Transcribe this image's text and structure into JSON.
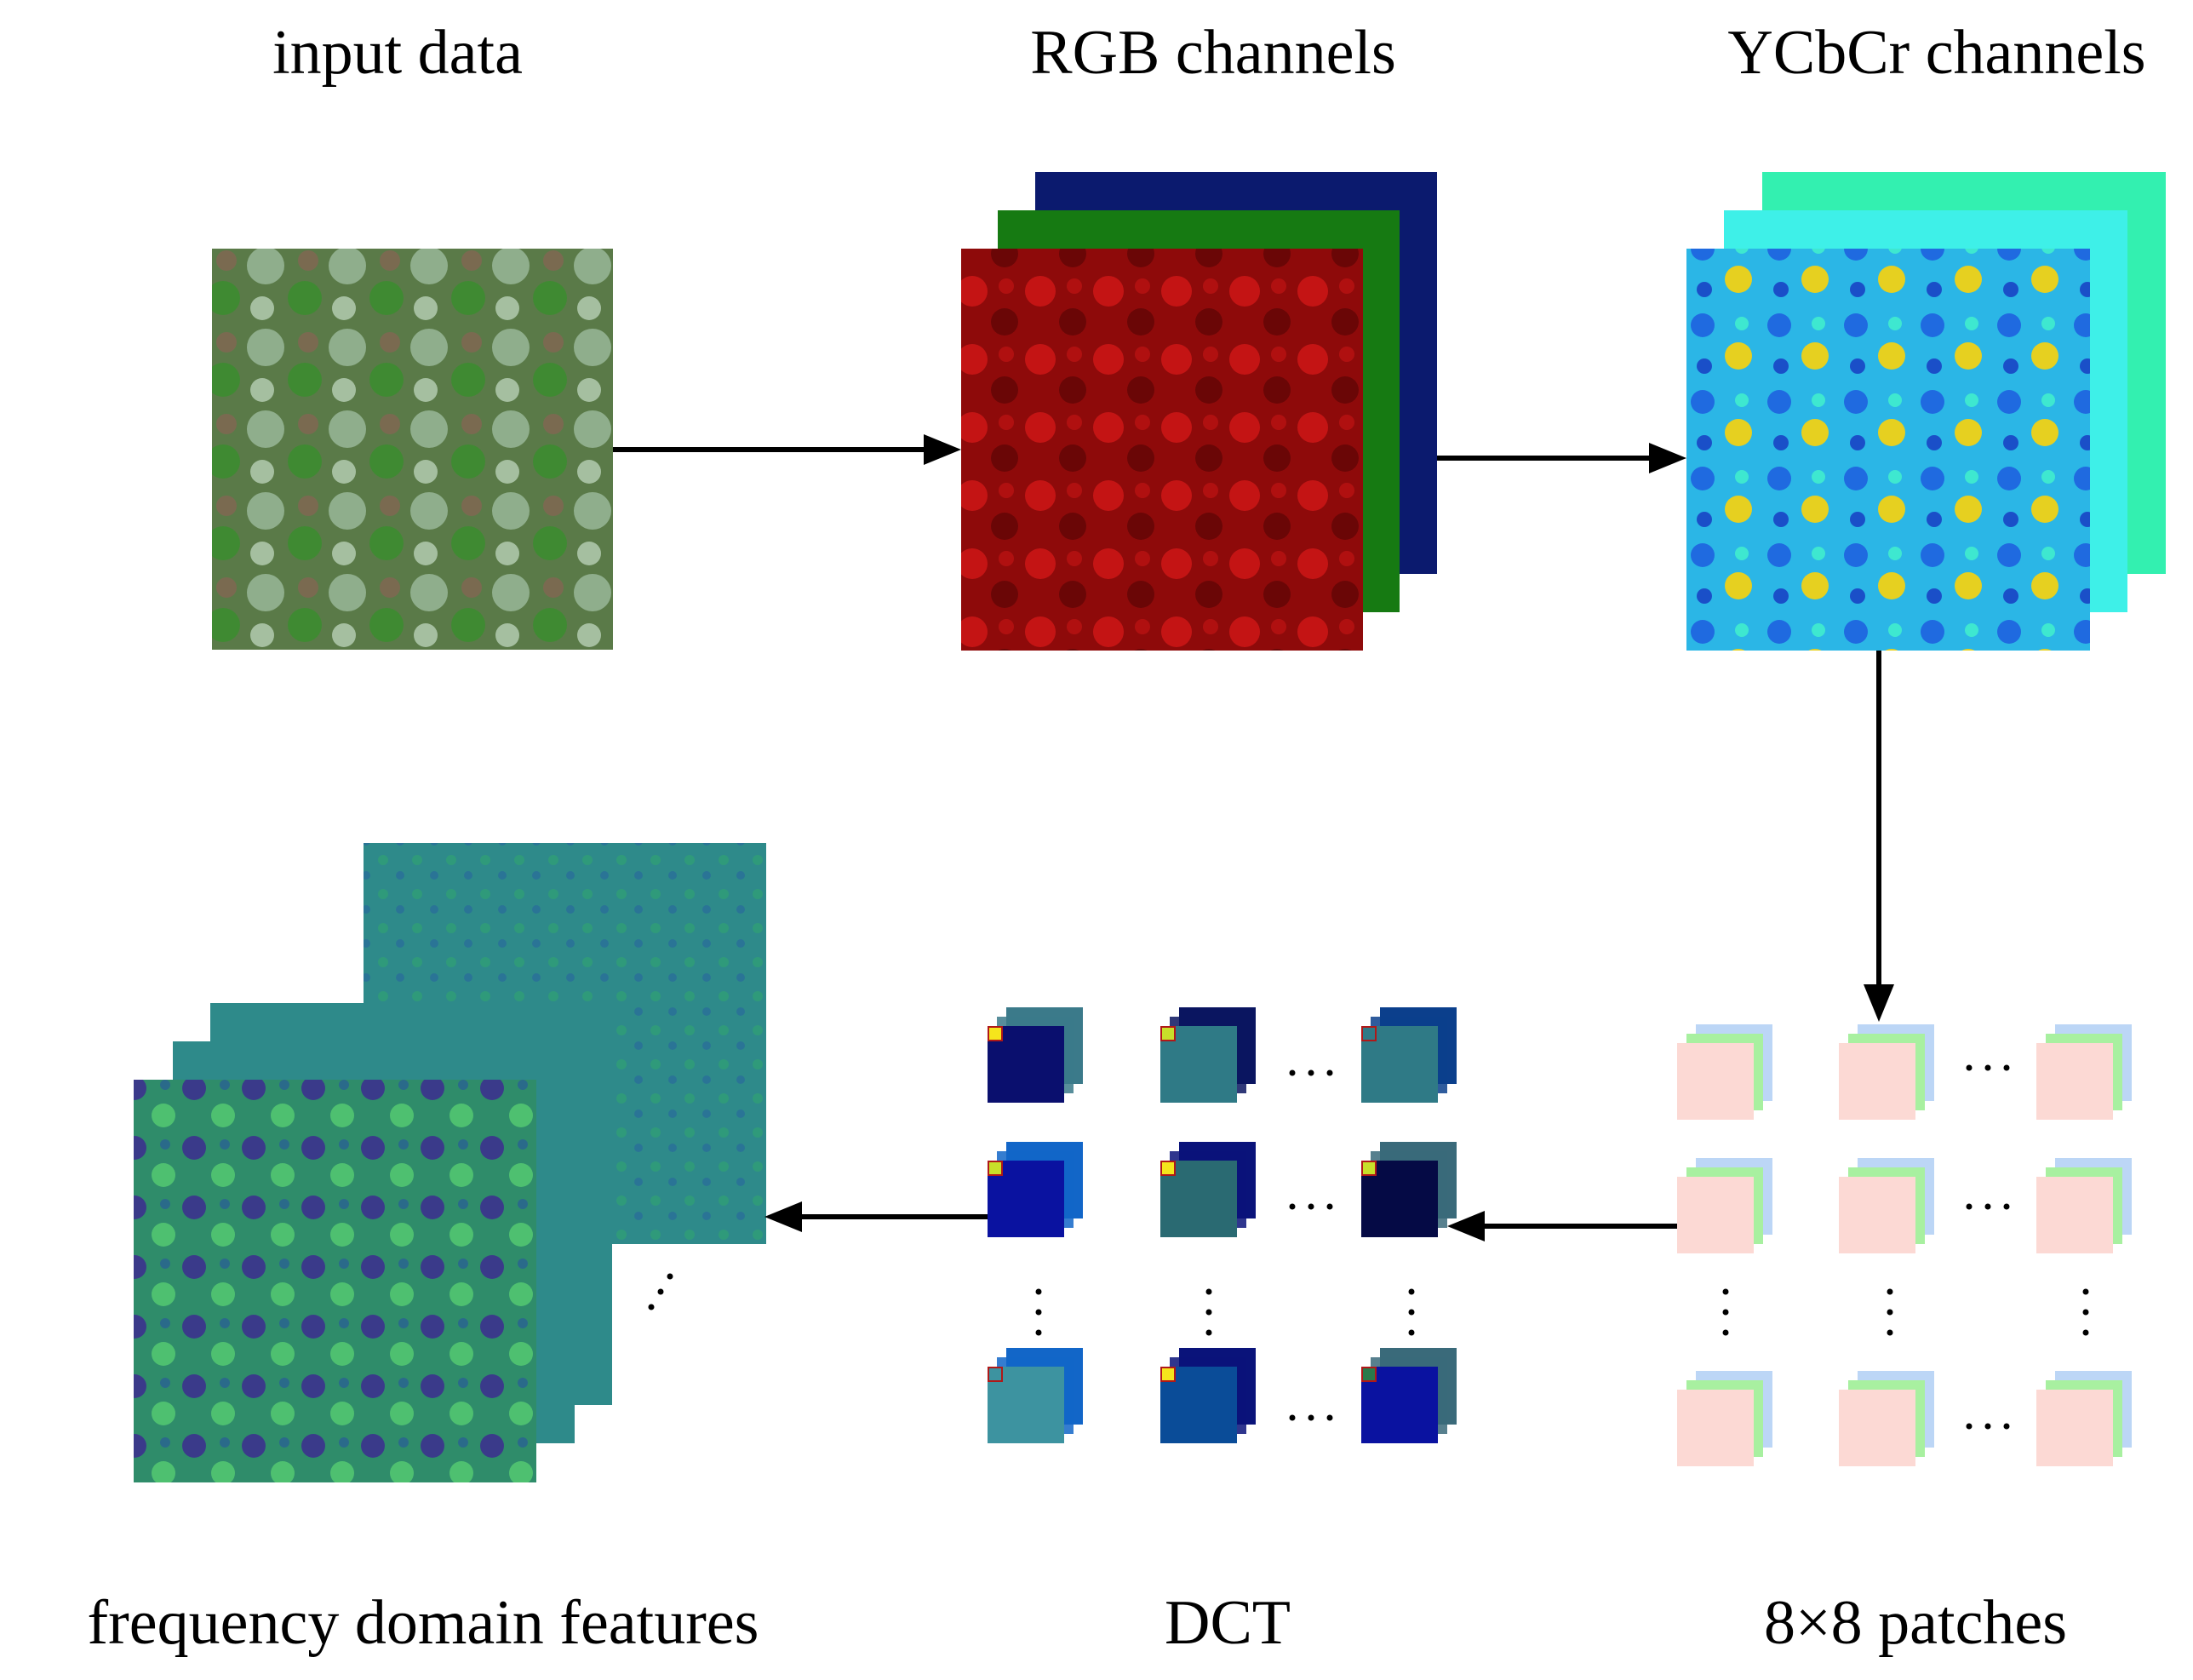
{
  "labels": {
    "input": "input data",
    "rgb": "RGB channels",
    "ycbcr": "YCbCr channels",
    "freq": "frequency domain features",
    "dct": "DCT",
    "patches": "8×8 patches"
  },
  "colors": {
    "arrow": "#000000",
    "rgb_red": "#8e0a0a",
    "rgb_green": "#167a12",
    "rgb_blue": "#0b1a6e",
    "ycbcr_front": "#2bb6e6",
    "ycbcr_mid": "#3ef0e8",
    "ycbcr_back": "#33f0b0",
    "freq_front": "#2f8c6a",
    "freq_back": "#2e8a8a",
    "patch_front": "#fcd9d4",
    "patch_green": "#a8f0a0",
    "patch_blue": "#bcd6f6"
  },
  "dct_grid": [
    [
      {
        "front": "#0a0f6e",
        "back": "#3b7a8a",
        "marker": "#f5e51c"
      },
      {
        "front": "#2f7a86",
        "back": "#0a1560",
        "marker": "#c8e02a"
      },
      {
        "front": "#2f7a86",
        "back": "#0b3f8c",
        "marker": "#2f7a86"
      }
    ],
    [
      {
        "front": "#0a12a0",
        "back": "#1266c8",
        "marker": "#c8e02a"
      },
      {
        "front": "#2a6a72",
        "back": "#0a137a",
        "marker": "#f5e51c"
      },
      {
        "front": "#050a45",
        "back": "#3a6a7a",
        "marker": "#c8e02a"
      }
    ],
    [
      {
        "front": "#3d93a0",
        "back": "#1266c8",
        "marker": "#3d93a0"
      },
      {
        "front": "#0a4c98",
        "back": "#0a137a",
        "marker": "#f5e51c"
      },
      {
        "front": "#0a12a0",
        "back": "#3a6a7a",
        "marker": "#2a7a4a"
      }
    ]
  ]
}
